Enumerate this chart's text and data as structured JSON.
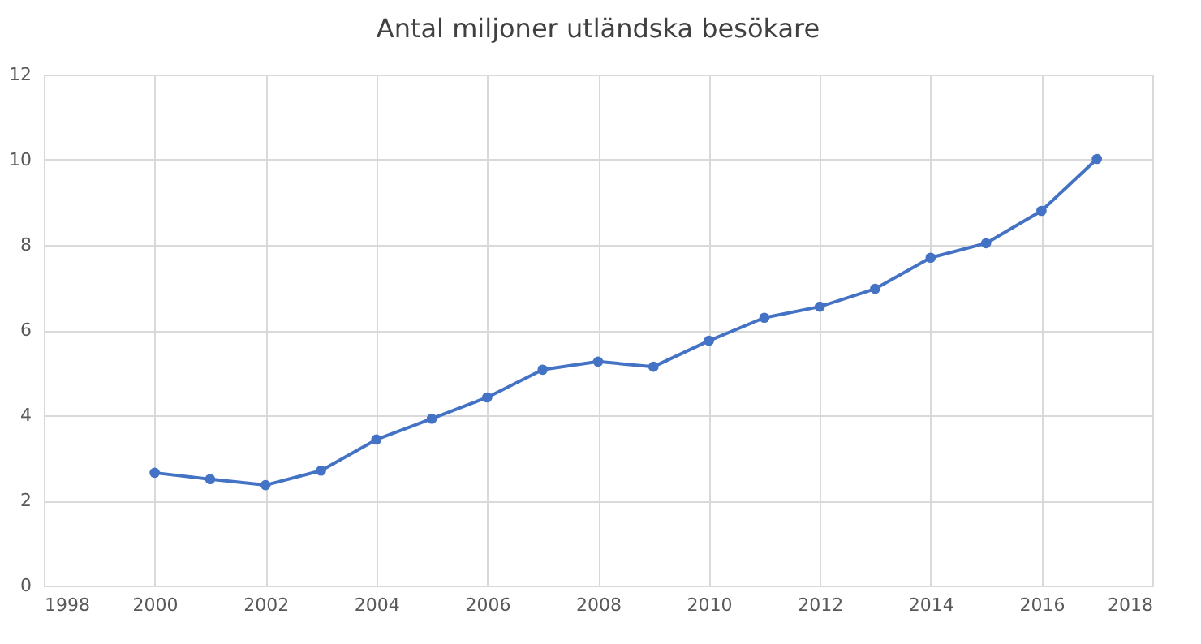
{
  "chart_data": {
    "type": "line",
    "title": "Antal miljoner utländska besökare",
    "x": [
      2000,
      2001,
      2002,
      2003,
      2004,
      2005,
      2006,
      2007,
      2008,
      2009,
      2010,
      2011,
      2012,
      2013,
      2014,
      2015,
      2016,
      2017
    ],
    "series": [
      {
        "color": "#4472c4",
        "values": [
          2.65,
          2.5,
          2.36,
          2.7,
          3.43,
          3.92,
          4.42,
          5.07,
          5.26,
          5.14,
          5.75,
          6.29,
          6.55,
          6.97,
          7.7,
          8.04,
          8.8,
          10.02
        ]
      }
    ],
    "xlim": [
      1998,
      2018
    ],
    "xticks": [
      1998,
      2000,
      2002,
      2004,
      2006,
      2008,
      2010,
      2012,
      2014,
      2016,
      2018
    ],
    "ylim": [
      0,
      12
    ],
    "yticks": [
      0,
      2,
      4,
      6,
      8,
      10,
      12
    ],
    "grid": true,
    "marker": "circle",
    "line_style": "solid"
  }
}
